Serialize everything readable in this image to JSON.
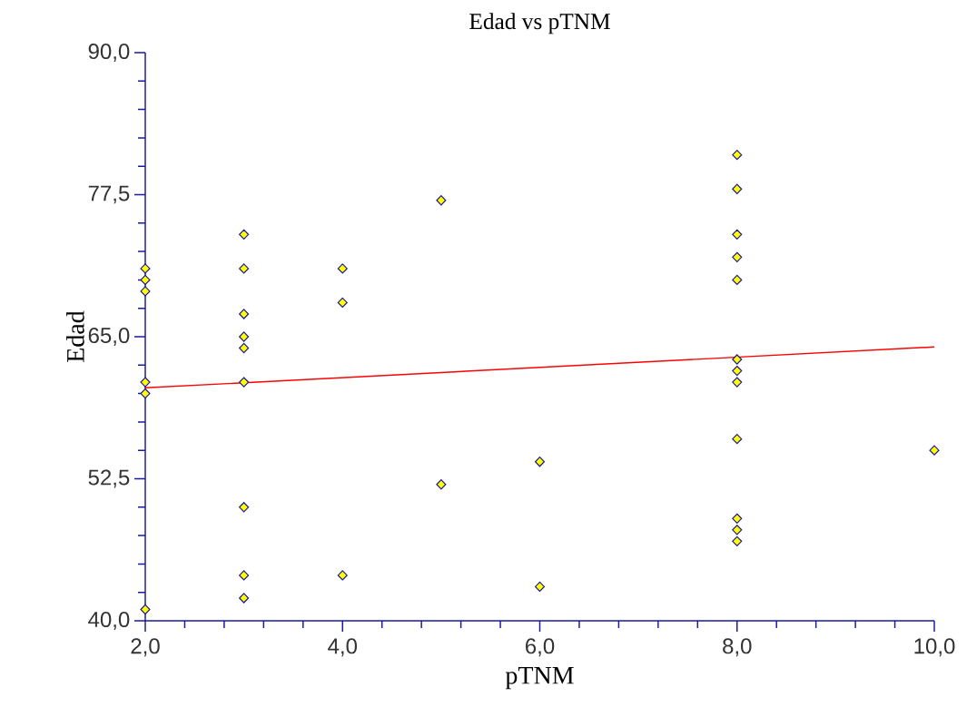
{
  "chart_data": {
    "type": "scatter",
    "title": "Edad vs pTNM",
    "xlabel": "pTNM",
    "ylabel": "Edad",
    "xlim": [
      2,
      10
    ],
    "ylim": [
      40,
      90
    ],
    "xticks": [
      {
        "value": 2,
        "label": "2,0"
      },
      {
        "value": 4,
        "label": "4,0"
      },
      {
        "value": 6,
        "label": "6,0"
      },
      {
        "value": 8,
        "label": "8,0"
      },
      {
        "value": 10,
        "label": "10,0"
      }
    ],
    "yticks": [
      {
        "value": 40,
        "label": "40,0"
      },
      {
        "value": 52.5,
        "label": "52,5"
      },
      {
        "value": 65,
        "label": "65,0"
      },
      {
        "value": 77.5,
        "label": "77,5"
      },
      {
        "value": 90,
        "label": "90,0"
      }
    ],
    "grid": false,
    "series": [
      {
        "marker": "diamond",
        "color": "#ffff00",
        "x": [
          2,
          2,
          2,
          2,
          2,
          2,
          3,
          3,
          3,
          3,
          3,
          3,
          3,
          3,
          3,
          4,
          4,
          4,
          5,
          5,
          6,
          6,
          8,
          8,
          8,
          8,
          8,
          8,
          8,
          8,
          8,
          8,
          8,
          8,
          10
        ],
        "values": [
          71,
          70,
          69,
          61,
          60,
          41,
          74,
          71,
          67,
          65,
          64,
          61,
          50,
          44,
          42,
          71,
          68,
          44,
          77,
          52,
          54,
          43,
          81,
          78,
          74,
          72,
          70,
          63,
          62,
          61,
          56,
          49,
          48,
          47,
          55
        ]
      },
      {
        "type": "line",
        "marker": "none",
        "color": "#ff0000",
        "x": [
          2,
          10
        ],
        "values": [
          60.5,
          64.1
        ]
      }
    ]
  }
}
